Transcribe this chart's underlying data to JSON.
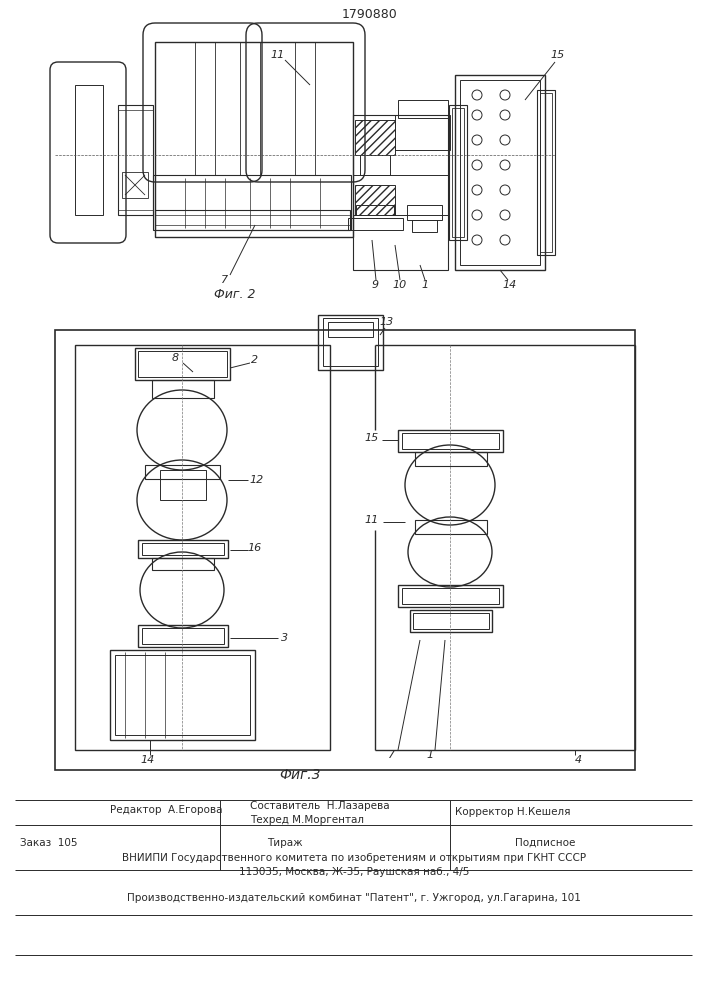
{
  "patent_number": "1790880",
  "fig2_label": "Фиг. 2",
  "fig3_label": "Фиг.3",
  "bg_color": "#ffffff",
  "line_color": "#2a2a2a",
  "editor_line": "Редактор  А.Егорова",
  "composer_line": "Составитель  Н.Лазарева",
  "techred_line": "Техред М.Моргентал",
  "corrector_line": "Корректор Н.Кешеля",
  "order_line": "Заказ  105",
  "tirazh_line": "Тираж",
  "podpisnoe_line": "Подписное",
  "vniiipi_line": "ВНИИПИ Государственного комитета по изобретениям и открытиям при ГКНТ СССР",
  "address_line": "113035, Москва, Ж-35, Раушская наб., 4/5",
  "factory_line": "Производственно-издательский комбинат \"Патент\", г. Ужгород, ул.Гагарина, 101"
}
